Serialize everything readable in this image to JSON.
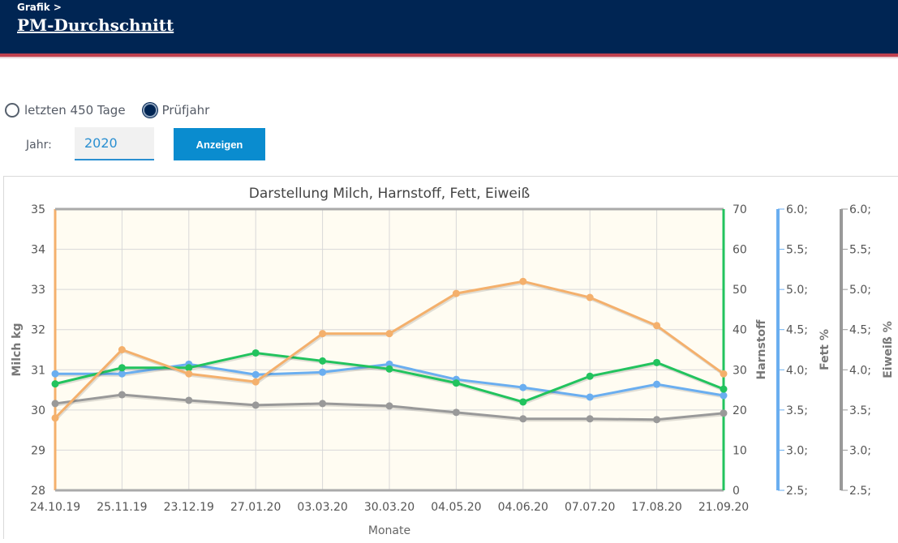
{
  "header": {
    "breadcrumb": "Grafik >",
    "title": "PM-Durchschnitt"
  },
  "filters": {
    "options": [
      {
        "label": "letzten 450 Tage",
        "checked": false
      },
      {
        "label": "Prüfjahr",
        "checked": true
      }
    ],
    "year_label": "Jahr:",
    "year_value": "2020",
    "show_button": "Anzeigen"
  },
  "chart_data": {
    "type": "line",
    "title": "Darstellung Milch, Harnstoff, Fett, Eiweiß",
    "xlabel": "Monate",
    "categories": [
      "24.10.19",
      "25.11.19",
      "23.12.19",
      "27.01.20",
      "03.03.20",
      "30.03.20",
      "04.05.20",
      "04.06.20",
      "07.07.20",
      "17.08.20",
      "21.09.20"
    ],
    "axes": [
      {
        "id": "milch",
        "label": "Milch kg",
        "position": "left",
        "range": [
          28,
          35
        ],
        "ticks": [
          "28",
          "29",
          "30",
          "31",
          "32",
          "33",
          "34",
          "35"
        ],
        "color": "#f4b06c"
      },
      {
        "id": "harnstoff",
        "label": "Harnstoff",
        "position": "right",
        "range": [
          0,
          70
        ],
        "ticks": [
          "0",
          "10",
          "20",
          "30",
          "40",
          "50",
          "60",
          "70"
        ],
        "color": "#22c35e"
      },
      {
        "id": "fett",
        "label": "Fett %",
        "position": "right",
        "range": [
          2.5,
          6.0
        ],
        "ticks": [
          "2.5;",
          "3.0;",
          "3.5;",
          "4.0;",
          "4.5;",
          "5.0;",
          "5.5;",
          "6.0;"
        ],
        "color": "#6aaef0"
      },
      {
        "id": "eiweiss",
        "label": "Eiweiß %",
        "position": "right",
        "range": [
          2.5,
          6.0
        ],
        "ticks": [
          "2.5;",
          "3.0;",
          "3.5;",
          "4.0;",
          "4.5;",
          "5.0;",
          "5.5;",
          "6.0;"
        ],
        "color": "#999999"
      }
    ],
    "series": [
      {
        "name": "Milch",
        "axis": "milch",
        "color": "#f4b06c",
        "values": [
          29.8,
          31.5,
          30.9,
          30.7,
          31.9,
          31.9,
          32.9,
          33.2,
          32.8,
          32.1,
          30.9
        ]
      },
      {
        "name": "Harnstoff",
        "axis": "harnstoff",
        "color": "#22c35e",
        "values": [
          26.5,
          30.5,
          30.5,
          34.2,
          32.2,
          30.2,
          26.7,
          22.0,
          28.4,
          31.8,
          25.2
        ]
      },
      {
        "name": "Fett",
        "axis": "fett",
        "color": "#6aaef0",
        "values": [
          3.95,
          3.95,
          4.07,
          3.94,
          3.97,
          4.07,
          3.88,
          3.78,
          3.66,
          3.82,
          3.68
        ]
      },
      {
        "name": "Eiweiß",
        "axis": "eiweiss",
        "color": "#999999",
        "values": [
          3.58,
          3.69,
          3.62,
          3.56,
          3.58,
          3.55,
          3.47,
          3.39,
          3.39,
          3.38,
          3.46
        ]
      }
    ]
  }
}
